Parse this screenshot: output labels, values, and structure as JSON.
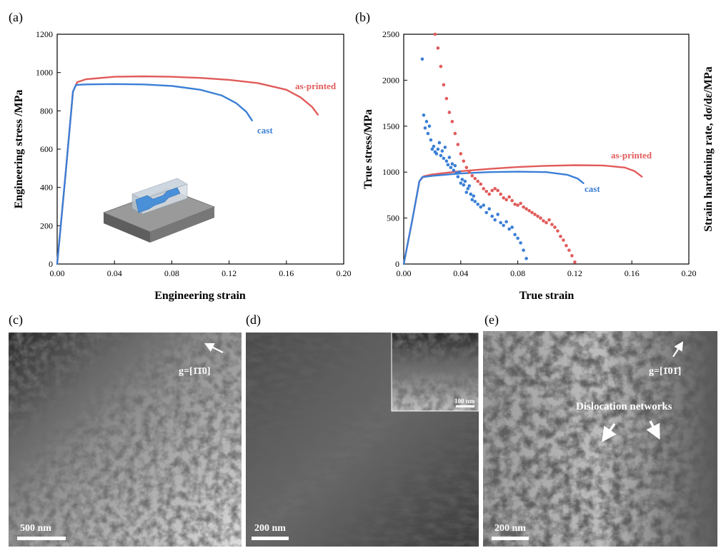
{
  "panels": {
    "a": "(a)",
    "b": "(b)",
    "c": "(c)",
    "d": "(d)",
    "e": "(e)"
  },
  "colors": {
    "as_printed": "#e15b5b",
    "cast": "#3b7fd6"
  },
  "chart_data": [
    {
      "id": "a",
      "type": "line",
      "xlabel": "Engineering strain",
      "ylabel": "Engineering stress /MPa",
      "xlim": [
        0,
        0.2
      ],
      "ylim": [
        0,
        1200
      ],
      "xticks": [
        0,
        0.04,
        0.08,
        0.12,
        0.16,
        0.2
      ],
      "xtick_labels": [
        "0.00",
        "0.04",
        "0.08",
        "0.12",
        "0.16",
        "0.20"
      ],
      "yticks": [
        0,
        200,
        400,
        600,
        800,
        1000,
        1200
      ],
      "ytick_labels": [
        "0",
        "200",
        "400",
        "600",
        "800",
        "1000",
        "1200"
      ],
      "series": [
        {
          "name": "as-printed",
          "x": [
            0,
            0.006,
            0.011,
            0.014,
            0.02,
            0.04,
            0.06,
            0.08,
            0.1,
            0.12,
            0.14,
            0.16,
            0.17,
            0.178,
            0.182
          ],
          "y": [
            0,
            480,
            900,
            950,
            965,
            978,
            980,
            978,
            972,
            962,
            945,
            910,
            870,
            820,
            780
          ]
        },
        {
          "name": "cast",
          "x": [
            0,
            0.006,
            0.011,
            0.013,
            0.02,
            0.04,
            0.06,
            0.08,
            0.1,
            0.115,
            0.125,
            0.132,
            0.136
          ],
          "y": [
            0,
            480,
            900,
            935,
            938,
            940,
            938,
            930,
            910,
            880,
            840,
            795,
            750
          ]
        }
      ]
    },
    {
      "id": "b",
      "type": "line+scatter",
      "xlabel": "True strain",
      "ylabel": "True stress/MPa",
      "ylabel_right": "Strain hardening rate, dσ/dε/MPa",
      "xlim": [
        0,
        0.2
      ],
      "ylim": [
        0,
        2500
      ],
      "xticks": [
        0,
        0.04,
        0.08,
        0.12,
        0.16,
        0.2
      ],
      "xtick_labels": [
        "0.00",
        "0.04",
        "0.08",
        "0.12",
        "0.16",
        "0.20"
      ],
      "yticks": [
        0,
        500,
        1000,
        1500,
        2000,
        2500
      ],
      "ytick_labels": [
        "0",
        "500",
        "1000",
        "1500",
        "2000",
        "2500"
      ],
      "series": [
        {
          "name": "as-printed",
          "kind": "line",
          "x": [
            0,
            0.006,
            0.011,
            0.014,
            0.02,
            0.04,
            0.06,
            0.08,
            0.1,
            0.12,
            0.14,
            0.155,
            0.162,
            0.167
          ],
          "y": [
            0,
            480,
            900,
            955,
            975,
            1010,
            1035,
            1055,
            1068,
            1075,
            1072,
            1050,
            1010,
            950
          ]
        },
        {
          "name": "cast",
          "kind": "line",
          "x": [
            0,
            0.006,
            0.011,
            0.013,
            0.02,
            0.04,
            0.06,
            0.08,
            0.1,
            0.115,
            0.122,
            0.126
          ],
          "y": [
            0,
            480,
            900,
            945,
            960,
            985,
            1000,
            1005,
            1000,
            970,
            930,
            880
          ]
        },
        {
          "name": "as-printed dσ/dε",
          "kind": "scatter",
          "x": [
            0.022,
            0.024,
            0.026,
            0.028,
            0.03,
            0.032,
            0.034,
            0.036,
            0.038,
            0.04,
            0.042,
            0.044,
            0.046,
            0.048,
            0.05,
            0.052,
            0.054,
            0.056,
            0.058,
            0.06,
            0.062,
            0.064,
            0.066,
            0.068,
            0.07,
            0.072,
            0.074,
            0.076,
            0.078,
            0.08,
            0.082,
            0.084,
            0.086,
            0.088,
            0.09,
            0.092,
            0.094,
            0.096,
            0.098,
            0.1,
            0.102,
            0.104,
            0.106,
            0.108,
            0.11,
            0.112,
            0.114,
            0.116,
            0.118,
            0.12
          ],
          "y": [
            2500,
            2350,
            2150,
            1950,
            1800,
            1650,
            1550,
            1420,
            1300,
            1200,
            1120,
            1050,
            1000,
            960,
            930,
            900,
            870,
            820,
            790,
            760,
            800,
            820,
            800,
            760,
            720,
            700,
            730,
            690,
            650,
            640,
            660,
            620,
            600,
            580,
            560,
            540,
            520,
            500,
            470,
            450,
            480,
            430,
            400,
            360,
            300,
            260,
            200,
            150,
            90,
            20
          ]
        },
        {
          "name": "cast dσ/dε",
          "kind": "scatter",
          "x": [
            0.013,
            0.014,
            0.015,
            0.016,
            0.017,
            0.018,
            0.019,
            0.02,
            0.021,
            0.022,
            0.023,
            0.024,
            0.025,
            0.026,
            0.027,
            0.028,
            0.029,
            0.03,
            0.031,
            0.032,
            0.033,
            0.034,
            0.035,
            0.036,
            0.037,
            0.038,
            0.039,
            0.04,
            0.041,
            0.042,
            0.043,
            0.044,
            0.045,
            0.046,
            0.047,
            0.048,
            0.049,
            0.05,
            0.052,
            0.054,
            0.056,
            0.058,
            0.06,
            0.062,
            0.064,
            0.066,
            0.068,
            0.07,
            0.072,
            0.074,
            0.076,
            0.078,
            0.08,
            0.082,
            0.084,
            0.086
          ],
          "y": [
            2230,
            1620,
            1480,
            1550,
            1420,
            1500,
            1350,
            1250,
            1280,
            1220,
            1200,
            1250,
            1320,
            1180,
            1230,
            1150,
            1270,
            1120,
            1080,
            1160,
            1050,
            1090,
            1020,
            1070,
            990,
            950,
            1000,
            880,
            920,
            860,
            900,
            780,
            820,
            850,
            760,
            700,
            740,
            680,
            650,
            620,
            640,
            560,
            600,
            520,
            480,
            540,
            450,
            420,
            460,
            380,
            400,
            320,
            280,
            230,
            150,
            60
          ]
        }
      ]
    }
  ],
  "insets": {
    "a": {
      "description": "tensile specimen"
    }
  },
  "micrographs": {
    "c": {
      "g_vector": "g=[1̄1̄0]",
      "scalebar": "500 nm"
    },
    "d": {
      "inset_scalebar": "100 nm",
      "scalebar": "200 nm"
    },
    "e": {
      "g_vector": "g=[1̄01̄]",
      "annotation": "Dislocation networks",
      "scalebar": "200 nm"
    }
  }
}
